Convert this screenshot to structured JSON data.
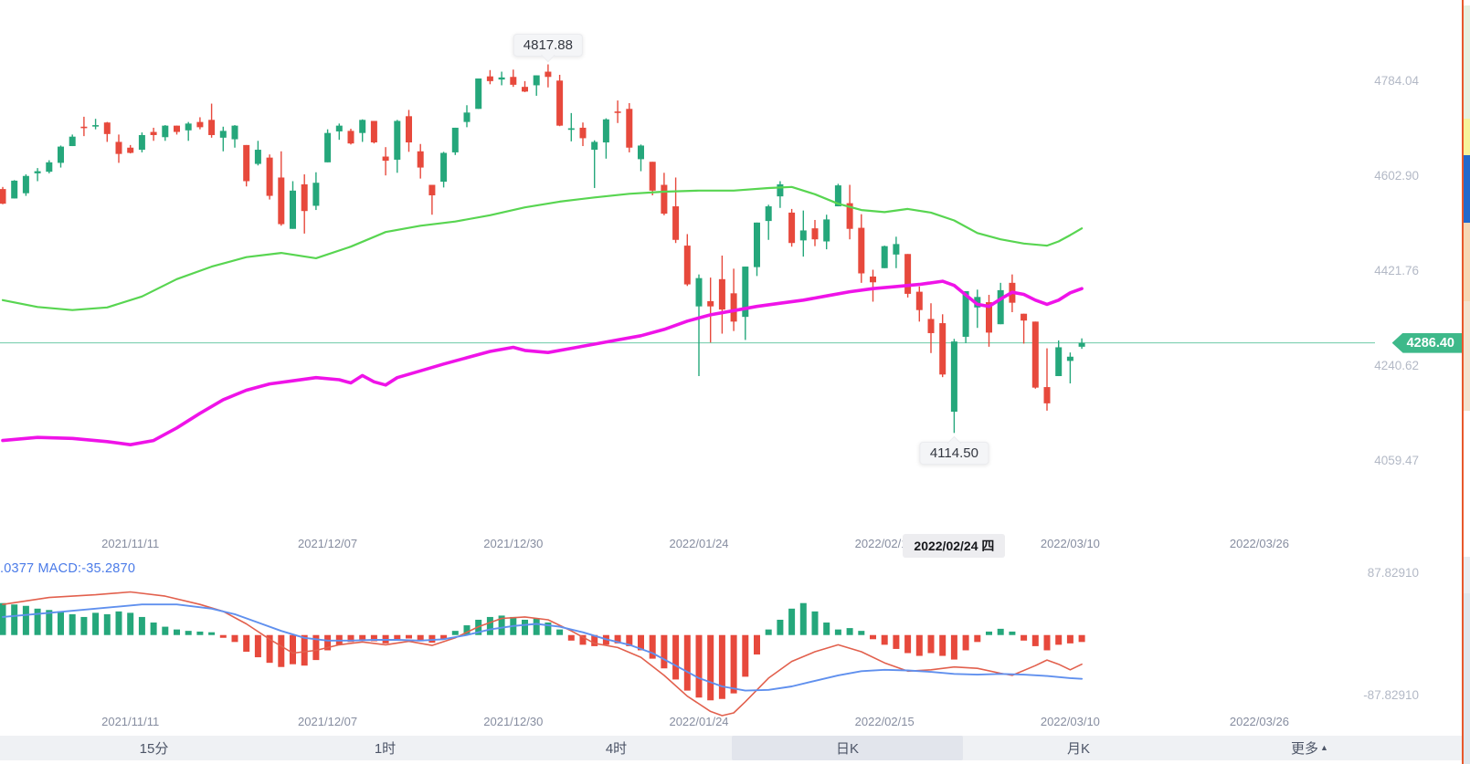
{
  "price_axis": {
    "labels": [
      "4784.04",
      "4602.90",
      "4421.76",
      "4240.62",
      "4059.47"
    ]
  },
  "chart_data": {
    "type": "candlestick",
    "panels": [
      "price",
      "macd"
    ],
    "legend_position": "none",
    "grid": false,
    "price_domain": [
      3965.2,
      4940.8
    ],
    "x_ticks": [
      {
        "label": "2021/11/11",
        "index": 11
      },
      {
        "label": "2021/12/07",
        "index": 28
      },
      {
        "label": "2021/12/30",
        "index": 44
      },
      {
        "label": "2022/01/24",
        "index": 60
      },
      {
        "label": "2022/02/15",
        "index": 76
      },
      {
        "label": "2022/03/10",
        "index": 92
      },
      {
        "label": "2022/03/26",
        "index": 108.3
      }
    ],
    "ohlc": [
      [
        4580,
        4584,
        4551,
        4552
      ],
      [
        4562,
        4597,
        4562,
        4596
      ],
      [
        4572,
        4608,
        4567,
        4605
      ],
      [
        4610,
        4620,
        4595,
        4614
      ],
      [
        4613,
        4635,
        4610,
        4631
      ],
      [
        4630,
        4663,
        4621,
        4661
      ],
      [
        4662,
        4684,
        4662,
        4680
      ],
      [
        4699,
        4718,
        4681,
        4698
      ],
      [
        4701,
        4714,
        4694,
        4702
      ],
      [
        4707,
        4708,
        4670,
        4685
      ],
      [
        4670,
        4684,
        4630,
        4647
      ],
      [
        4659,
        4664,
        4648,
        4649
      ],
      [
        4655,
        4688,
        4650,
        4683
      ],
      [
        4689,
        4697,
        4672,
        4683
      ],
      [
        4679,
        4702,
        4672,
        4701
      ],
      [
        4701,
        4701,
        4684,
        4689
      ],
      [
        4692,
        4708,
        4672,
        4705
      ],
      [
        4708,
        4717,
        4694,
        4698
      ],
      [
        4712,
        4743,
        4678,
        4683
      ],
      [
        4678,
        4699,
        4652,
        4691
      ],
      [
        4675,
        4702,
        4659,
        4701
      ],
      [
        4664,
        4664,
        4585,
        4595
      ],
      [
        4628,
        4672,
        4625,
        4655
      ],
      [
        4640,
        4646,
        4560,
        4567
      ],
      [
        4602,
        4652,
        4510,
        4513
      ],
      [
        4504,
        4595,
        4504,
        4577
      ],
      [
        4589,
        4608,
        4495,
        4538
      ],
      [
        4548,
        4612,
        4540,
        4592
      ],
      [
        4631,
        4694,
        4631,
        4687
      ],
      [
        4690,
        4705,
        4674,
        4701
      ],
      [
        4691,
        4695,
        4665,
        4667
      ],
      [
        4687,
        4713,
        4670,
        4712
      ],
      [
        4710,
        4710,
        4667,
        4669
      ],
      [
        4642,
        4660,
        4606,
        4634
      ],
      [
        4636,
        4712,
        4611,
        4710
      ],
      [
        4719,
        4731,
        4651,
        4669
      ],
      [
        4652,
        4666,
        4600,
        4621
      ],
      [
        4588,
        4588,
        4531,
        4568
      ],
      [
        4594,
        4651,
        4583,
        4649
      ],
      [
        4650,
        4697,
        4645,
        4697
      ],
      [
        4708,
        4740,
        4698,
        4726
      ],
      [
        4733,
        4791,
        4733,
        4791
      ],
      [
        4795,
        4807,
        4780,
        4786
      ],
      [
        4789,
        4804,
        4778,
        4793
      ],
      [
        4794,
        4808,
        4775,
        4779
      ],
      [
        4775,
        4786,
        4765,
        4766
      ],
      [
        4778,
        4797,
        4758,
        4797
      ],
      [
        4804,
        4817.88,
        4774,
        4794
      ],
      [
        4787,
        4798,
        4700,
        4701
      ],
      [
        4693,
        4725,
        4671,
        4696
      ],
      [
        4697,
        4707,
        4662,
        4677
      ],
      [
        4655,
        4673,
        4582,
        4670
      ],
      [
        4669,
        4715,
        4638,
        4713
      ],
      [
        4728,
        4749,
        4706,
        4726
      ],
      [
        4733,
        4744,
        4650,
        4659
      ],
      [
        4637,
        4665,
        4614,
        4663
      ],
      [
        4632,
        4632,
        4568,
        4577
      ],
      [
        4588,
        4611,
        4530,
        4533
      ],
      [
        4547,
        4602,
        4477,
        4483
      ],
      [
        4472,
        4494,
        4395,
        4398
      ],
      [
        4356,
        4417,
        4223,
        4410
      ],
      [
        4366,
        4411,
        4287,
        4356
      ],
      [
        4408,
        4453,
        4304,
        4350
      ],
      [
        4381,
        4428,
        4309,
        4327
      ],
      [
        4336,
        4432,
        4292,
        4432
      ],
      [
        4431,
        4516,
        4414,
        4516
      ],
      [
        4519,
        4550,
        4483,
        4547
      ],
      [
        4566,
        4595,
        4544,
        4589
      ],
      [
        4535,
        4542,
        4470,
        4477
      ],
      [
        4482,
        4539,
        4451,
        4501
      ],
      [
        4505,
        4521,
        4471,
        4484
      ],
      [
        4480,
        4531,
        4465,
        4522
      ],
      [
        4547,
        4590,
        4547,
        4587
      ],
      [
        4553,
        4588,
        4484,
        4504
      ],
      [
        4506,
        4532,
        4401,
        4419
      ],
      [
        4413,
        4426,
        4365,
        4402
      ],
      [
        4429,
        4472,
        4429,
        4471
      ],
      [
        4455,
        4489,
        4429,
        4475
      ],
      [
        4456,
        4456,
        4373,
        4380
      ],
      [
        4384,
        4394,
        4327,
        4349
      ],
      [
        4332,
        4362,
        4267,
        4305
      ],
      [
        4324,
        4341,
        4221,
        4226
      ],
      [
        4155,
        4294,
        4114.5,
        4289
      ],
      [
        4298,
        4385,
        4286,
        4385
      ],
      [
        4354,
        4388,
        4315,
        4374
      ],
      [
        4364,
        4378,
        4279,
        4306
      ],
      [
        4322,
        4401,
        4322,
        4387
      ],
      [
        4401,
        4417,
        4345,
        4363
      ],
      [
        4342,
        4342,
        4285,
        4329
      ],
      [
        4327,
        4327,
        4199,
        4201
      ],
      [
        4202,
        4276,
        4157,
        4171
      ],
      [
        4223,
        4291,
        4223,
        4278
      ],
      [
        4252,
        4268,
        4209,
        4260
      ],
      [
        4279,
        4295,
        4275,
        4286.4
      ]
    ],
    "ma_green": [
      [
        0,
        4368
      ],
      [
        3,
        4355
      ],
      [
        6,
        4349
      ],
      [
        9,
        4354
      ],
      [
        12,
        4375
      ],
      [
        15,
        4408
      ],
      [
        18,
        4432
      ],
      [
        21,
        4450
      ],
      [
        24,
        4458
      ],
      [
        27,
        4448
      ],
      [
        30,
        4470
      ],
      [
        33,
        4498
      ],
      [
        36,
        4510
      ],
      [
        39,
        4518
      ],
      [
        42,
        4530
      ],
      [
        45,
        4545
      ],
      [
        48,
        4556
      ],
      [
        51,
        4564
      ],
      [
        54,
        4571
      ],
      [
        57,
        4575
      ],
      [
        60,
        4577
      ],
      [
        63,
        4577
      ],
      [
        66,
        4582
      ],
      [
        68,
        4584
      ],
      [
        70,
        4570
      ],
      [
        72,
        4552
      ],
      [
        74,
        4540
      ],
      [
        76,
        4536
      ],
      [
        78,
        4542
      ],
      [
        80,
        4535
      ],
      [
        82,
        4520
      ],
      [
        84,
        4496
      ],
      [
        86,
        4484
      ],
      [
        88,
        4476
      ],
      [
        90,
        4472
      ],
      [
        91,
        4480
      ],
      [
        92,
        4492
      ],
      [
        93,
        4505
      ]
    ],
    "ma_magenta": [
      [
        0,
        4100
      ],
      [
        3,
        4106
      ],
      [
        6,
        4104
      ],
      [
        9,
        4098
      ],
      [
        11,
        4092
      ],
      [
        13,
        4100
      ],
      [
        15,
        4124
      ],
      [
        17,
        4152
      ],
      [
        19,
        4178
      ],
      [
        21,
        4196
      ],
      [
        23,
        4208
      ],
      [
        25,
        4214
      ],
      [
        27,
        4220
      ],
      [
        29,
        4216
      ],
      [
        30,
        4210
      ],
      [
        31,
        4224
      ],
      [
        32,
        4212
      ],
      [
        33,
        4206
      ],
      [
        34,
        4220
      ],
      [
        36,
        4233
      ],
      [
        38,
        4246
      ],
      [
        40,
        4258
      ],
      [
        42,
        4270
      ],
      [
        44,
        4278
      ],
      [
        45,
        4272
      ],
      [
        47,
        4268
      ],
      [
        49,
        4276
      ],
      [
        51,
        4284
      ],
      [
        53,
        4292
      ],
      [
        55,
        4300
      ],
      [
        57,
        4312
      ],
      [
        59,
        4328
      ],
      [
        61,
        4340
      ],
      [
        63,
        4348
      ],
      [
        65,
        4356
      ],
      [
        67,
        4362
      ],
      [
        69,
        4368
      ],
      [
        71,
        4376
      ],
      [
        73,
        4384
      ],
      [
        75,
        4390
      ],
      [
        77,
        4394
      ],
      [
        79,
        4398
      ],
      [
        81,
        4404
      ],
      [
        82,
        4396
      ],
      [
        83,
        4378
      ],
      [
        84,
        4360
      ],
      [
        85,
        4356
      ],
      [
        86,
        4370
      ],
      [
        87,
        4383
      ],
      [
        88,
        4379
      ],
      [
        89,
        4368
      ],
      [
        90,
        4360
      ],
      [
        91,
        4368
      ],
      [
        92,
        4382
      ],
      [
        93,
        4390
      ]
    ],
    "macd": {
      "legend": ".0377  MACD:-35.2870",
      "axis_max": "87.82910",
      "axis_min": "-87.82910",
      "axis_max_value": 87.8291,
      "axis_min_value": -87.8291,
      "value_domain": [
        -116,
        110
      ],
      "hist": [
        46,
        44,
        42,
        38,
        36,
        34,
        30,
        26,
        32,
        30,
        34,
        32,
        26,
        18,
        12,
        8,
        6,
        5,
        4,
        -4,
        -10,
        -24,
        -32,
        -40,
        -46,
        -42,
        -44,
        -36,
        -22,
        -14,
        -10,
        -7,
        -9,
        -12,
        -6,
        -5,
        -9,
        -11,
        -6,
        6,
        14,
        22,
        26,
        28,
        26,
        22,
        24,
        18,
        8,
        -8,
        -14,
        -16,
        -14,
        -12,
        -16,
        -22,
        -34,
        -48,
        -64,
        -80,
        -90,
        -94,
        -92,
        -84,
        -60,
        -28,
        8,
        22,
        38,
        46,
        34,
        18,
        8,
        10,
        6,
        -6,
        -14,
        -20,
        -26,
        -30,
        -26,
        -30,
        -35.29,
        -22,
        -10,
        5,
        9,
        5,
        -8,
        -16,
        -22,
        -14,
        -12,
        -10
      ],
      "dif": [
        [
          0,
          44
        ],
        [
          4,
          54
        ],
        [
          8,
          58
        ],
        [
          11,
          62
        ],
        [
          14,
          56
        ],
        [
          17,
          44
        ],
        [
          19,
          34
        ],
        [
          21,
          16
        ],
        [
          23,
          -6
        ],
        [
          25,
          -26
        ],
        [
          27,
          -22
        ],
        [
          29,
          -14
        ],
        [
          31,
          -10
        ],
        [
          33,
          -14
        ],
        [
          35,
          -9
        ],
        [
          37,
          -15
        ],
        [
          39,
          -4
        ],
        [
          41,
          12
        ],
        [
          43,
          24
        ],
        [
          45,
          26
        ],
        [
          47,
          22
        ],
        [
          49,
          6
        ],
        [
          51,
          -12
        ],
        [
          53,
          -18
        ],
        [
          55,
          -32
        ],
        [
          57,
          -58
        ],
        [
          59,
          -88
        ],
        [
          61,
          -110
        ],
        [
          62,
          -116
        ],
        [
          63,
          -112
        ],
        [
          64,
          -96
        ],
        [
          66,
          -62
        ],
        [
          68,
          -38
        ],
        [
          70,
          -24
        ],
        [
          72,
          -14
        ],
        [
          74,
          -24
        ],
        [
          76,
          -40
        ],
        [
          78,
          -52
        ],
        [
          80,
          -50
        ],
        [
          82,
          -46
        ],
        [
          84,
          -48
        ],
        [
          86,
          -55
        ],
        [
          87,
          -58
        ],
        [
          89,
          -44
        ],
        [
          90,
          -36
        ],
        [
          91,
          -42
        ],
        [
          92,
          -50
        ],
        [
          93,
          -42
        ]
      ],
      "dea": [
        [
          0,
          26
        ],
        [
          4,
          32
        ],
        [
          8,
          38
        ],
        [
          12,
          44
        ],
        [
          15,
          44
        ],
        [
          18,
          38
        ],
        [
          20,
          30
        ],
        [
          22,
          18
        ],
        [
          24,
          6
        ],
        [
          26,
          -4
        ],
        [
          28,
          -8
        ],
        [
          30,
          -8
        ],
        [
          32,
          -7
        ],
        [
          34,
          -7
        ],
        [
          36,
          -8
        ],
        [
          38,
          -6
        ],
        [
          40,
          0
        ],
        [
          42,
          8
        ],
        [
          44,
          13
        ],
        [
          46,
          16
        ],
        [
          48,
          12
        ],
        [
          50,
          4
        ],
        [
          52,
          -6
        ],
        [
          54,
          -14
        ],
        [
          56,
          -26
        ],
        [
          58,
          -44
        ],
        [
          60,
          -62
        ],
        [
          62,
          -74
        ],
        [
          64,
          -80
        ],
        [
          66,
          -79
        ],
        [
          68,
          -74
        ],
        [
          70,
          -66
        ],
        [
          72,
          -58
        ],
        [
          74,
          -52
        ],
        [
          76,
          -50
        ],
        [
          78,
          -51
        ],
        [
          80,
          -53
        ],
        [
          82,
          -56
        ],
        [
          84,
          -57
        ],
        [
          86,
          -56
        ],
        [
          88,
          -57
        ],
        [
          90,
          -59
        ],
        [
          92,
          -62
        ],
        [
          93,
          -63
        ]
      ]
    },
    "annotations": {
      "high": {
        "label": "4817.88",
        "index": 47,
        "price": 4817.88
      },
      "low": {
        "label": "4114.50",
        "index": 82,
        "price": 4114.5
      },
      "last_price": {
        "label": "4286.40",
        "value": 4286.4
      },
      "crosshair_date": {
        "label": "2022/02/24 四",
        "index": 82
      }
    }
  },
  "tabs": [
    {
      "key": "15m",
      "label": "15分",
      "selected": false
    },
    {
      "key": "1h",
      "label": "1时",
      "selected": false
    },
    {
      "key": "4h",
      "label": "4时",
      "selected": false
    },
    {
      "key": "1d",
      "label": "日K",
      "selected": true
    },
    {
      "key": "1M",
      "label": "月K",
      "selected": false
    },
    {
      "key": "more",
      "label": "更多",
      "arrow": "▲",
      "selected": false
    }
  ],
  "colors": {
    "up": "#25a77b",
    "down": "#e7493c",
    "ma_green": "#58d551",
    "ma_magenta": "#ef13e8",
    "last_price": "#3eb98a",
    "dif": "#e2604d",
    "dea": "#6090ee",
    "hist_up": "#25a77b",
    "hist_down": "#e7493c",
    "axis_text": "#b3b9c6",
    "date_text": "#868da0",
    "legend_blue": "#4b7be8",
    "tooltip_bg": "#f4f5f7",
    "tab_bar_bg": "#eff1f4",
    "tab_selected_bg": "#e2e5ec",
    "tab_text": "#4d5567"
  },
  "edge_sliver": {
    "border": "#e8582c",
    "segments": [
      [
        "#ffffff",
        6
      ],
      [
        "#e6f0e0",
        124
      ],
      [
        "#f7f29a",
        40
      ],
      [
        "#2268cc",
        74
      ],
      [
        "#f6d7b4",
        86
      ],
      [
        "#f3e3cf",
        120
      ],
      [
        "#ffffff",
        160
      ],
      [
        "#e9edf1",
        40
      ],
      [
        "#dfe6ec",
        187
      ]
    ]
  }
}
